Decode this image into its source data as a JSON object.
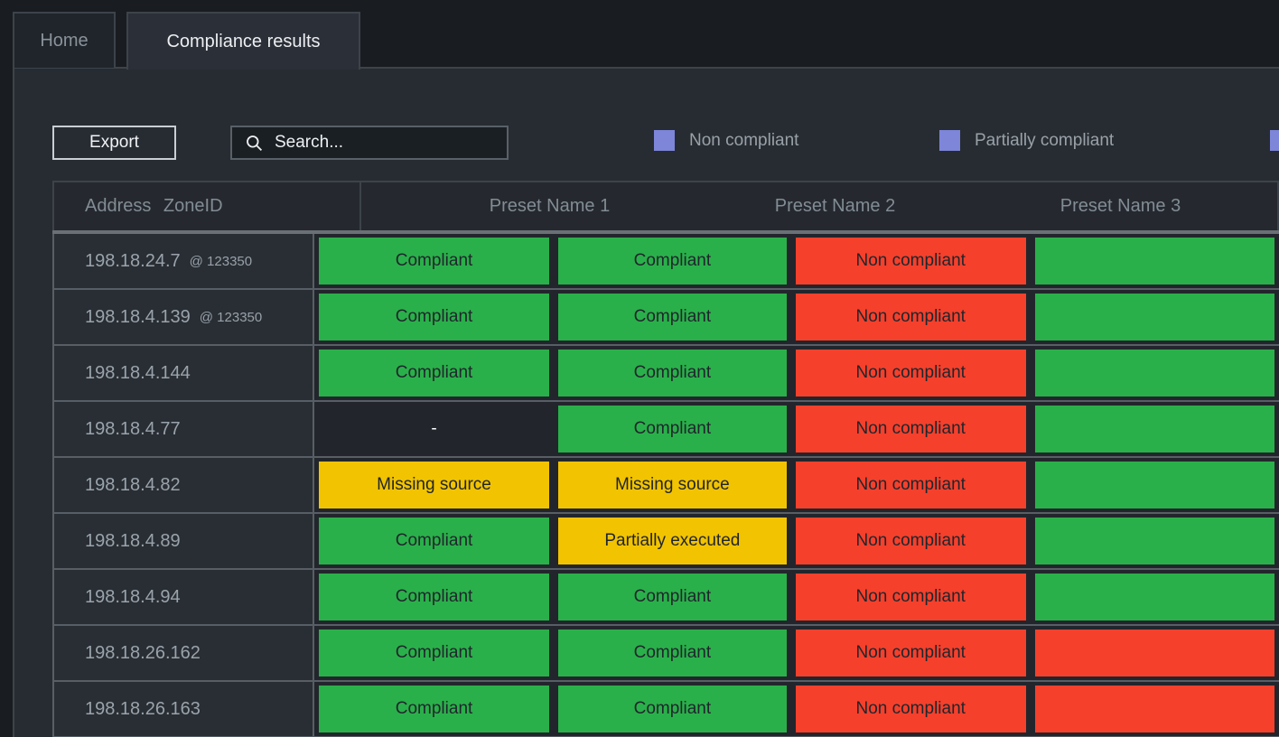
{
  "tabs": [
    {
      "label": "Home",
      "active": false
    },
    {
      "label": "Compliance results",
      "active": true
    }
  ],
  "toolbar": {
    "export_label": "Export",
    "search_placeholder": "Search..."
  },
  "legend": [
    {
      "label": "Non compliant"
    },
    {
      "label": "Partially compliant"
    },
    {
      "label": ""
    }
  ],
  "colors": {
    "legend_swatch": "#7d86d8",
    "status": {
      "compliant": "#2ab04a",
      "non_compliant": "#f5402c",
      "missing_source": "#f2c300",
      "partially_executed": "#f2c300",
      "none": "transparent"
    }
  },
  "table": {
    "columns": [
      "Address ZoneID",
      "Preset Name 1",
      "Preset Name 2",
      "Preset Name 3"
    ],
    "rows": [
      {
        "address": "198.18.24.7",
        "zone_label": "@ 123350",
        "statuses": [
          {
            "label": "Compliant",
            "type": "compliant"
          },
          {
            "label": "Compliant",
            "type": "compliant"
          },
          {
            "label": "Non compliant",
            "type": "non_compliant"
          },
          {
            "label": "",
            "type": "compliant"
          }
        ]
      },
      {
        "address": "198.18.4.139",
        "zone_label": "@ 123350",
        "statuses": [
          {
            "label": "Compliant",
            "type": "compliant"
          },
          {
            "label": "Compliant",
            "type": "compliant"
          },
          {
            "label": "Non compliant",
            "type": "non_compliant"
          },
          {
            "label": "",
            "type": "compliant"
          }
        ]
      },
      {
        "address": "198.18.4.144",
        "zone_label": "",
        "statuses": [
          {
            "label": "Compliant",
            "type": "compliant"
          },
          {
            "label": "Compliant",
            "type": "compliant"
          },
          {
            "label": "Non compliant",
            "type": "non_compliant"
          },
          {
            "label": "",
            "type": "compliant"
          }
        ]
      },
      {
        "address": "198.18.4.77",
        "zone_label": "",
        "statuses": [
          {
            "label": "-",
            "type": "none"
          },
          {
            "label": "Compliant",
            "type": "compliant"
          },
          {
            "label": "Non compliant",
            "type": "non_compliant"
          },
          {
            "label": "",
            "type": "compliant"
          }
        ]
      },
      {
        "address": "198.18.4.82",
        "zone_label": "",
        "statuses": [
          {
            "label": "Missing source",
            "type": "missing_source"
          },
          {
            "label": "Missing source",
            "type": "missing_source"
          },
          {
            "label": "Non compliant",
            "type": "non_compliant"
          },
          {
            "label": "",
            "type": "compliant"
          }
        ]
      },
      {
        "address": "198.18.4.89",
        "zone_label": "",
        "statuses": [
          {
            "label": "Compliant",
            "type": "compliant"
          },
          {
            "label": "Partially executed",
            "type": "partially_executed"
          },
          {
            "label": "Non compliant",
            "type": "non_compliant"
          },
          {
            "label": "",
            "type": "compliant"
          }
        ]
      },
      {
        "address": "198.18.4.94",
        "zone_label": "",
        "statuses": [
          {
            "label": "Compliant",
            "type": "compliant"
          },
          {
            "label": "Compliant",
            "type": "compliant"
          },
          {
            "label": "Non compliant",
            "type": "non_compliant"
          },
          {
            "label": "",
            "type": "compliant"
          }
        ]
      },
      {
        "address": "198.18.26.162",
        "zone_label": "",
        "statuses": [
          {
            "label": "Compliant",
            "type": "compliant"
          },
          {
            "label": "Compliant",
            "type": "compliant"
          },
          {
            "label": "Non compliant",
            "type": "non_compliant"
          },
          {
            "label": "",
            "type": "non_compliant"
          }
        ]
      },
      {
        "address": "198.18.26.163",
        "zone_label": "",
        "statuses": [
          {
            "label": "Compliant",
            "type": "compliant"
          },
          {
            "label": "Compliant",
            "type": "compliant"
          },
          {
            "label": "Non compliant",
            "type": "non_compliant"
          },
          {
            "label": "",
            "type": "non_compliant"
          }
        ]
      }
    ]
  }
}
